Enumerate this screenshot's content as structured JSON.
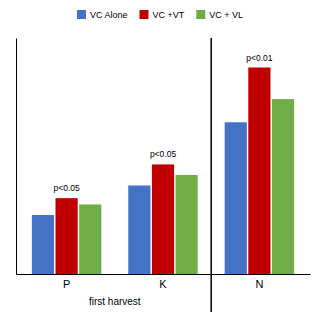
{
  "chart_data": {
    "type": "bar",
    "categories": [
      "P",
      "K",
      "N"
    ],
    "series": [
      {
        "name": "VC Alone",
        "color": "#4472C4",
        "values": [
          0.28,
          0.42,
          0.72
        ]
      },
      {
        "name": "VC +VT",
        "color": "#C00000",
        "values": [
          0.36,
          0.52,
          0.98
        ]
      },
      {
        "name": "VC + VL",
        "color": "#70AD47",
        "values": [
          0.33,
          0.47,
          0.83
        ]
      }
    ],
    "ylim": [
      0,
      1.12
    ],
    "yticks": [],
    "tick_labels": "x",
    "grid": false,
    "legend": "top",
    "annotations": [
      {
        "text": "p<0.05",
        "category": "P",
        "y": 0.385
      },
      {
        "text": "p<0.05",
        "category": "K",
        "y": 0.545
      },
      {
        "text": "p<0.01",
        "category": "N",
        "y": 1.0
      }
    ],
    "group_labels": [
      {
        "label": "first harvest",
        "categories": [
          "P",
          "K"
        ]
      }
    ]
  }
}
